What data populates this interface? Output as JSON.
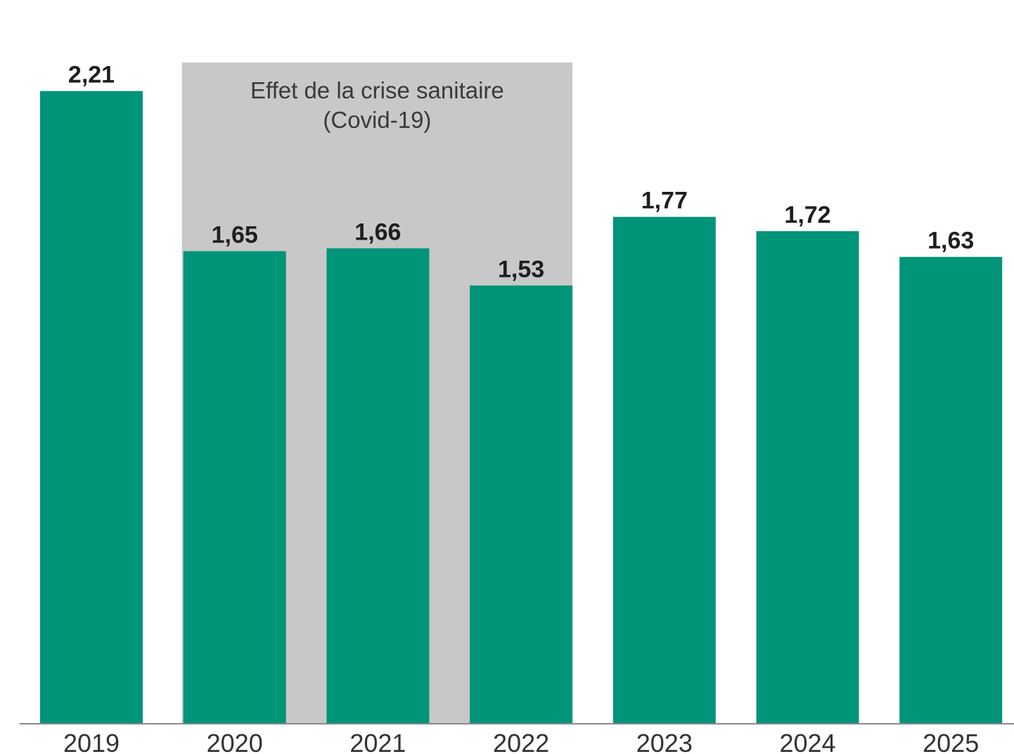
{
  "chart_data": {
    "type": "bar",
    "categories": [
      "2019",
      "2020",
      "2021",
      "2022",
      "2023",
      "2024",
      "2025"
    ],
    "values": [
      2.21,
      1.65,
      1.66,
      1.53,
      1.77,
      1.72,
      1.63
    ],
    "value_labels": [
      "2,21",
      "1,65",
      "1,66",
      "1,53",
      "1,77",
      "1,72",
      "1,63"
    ],
    "title": "",
    "xlabel": "",
    "ylabel": "",
    "ylim": [
      0,
      2.5
    ],
    "grid": false,
    "bar_color": "#009478",
    "annotation": {
      "line1": "Effet de la crise sanitaire",
      "line2": "(Covid-19)",
      "span_categories": [
        "2020",
        "2022"
      ],
      "color": "#c8c8c8"
    }
  }
}
